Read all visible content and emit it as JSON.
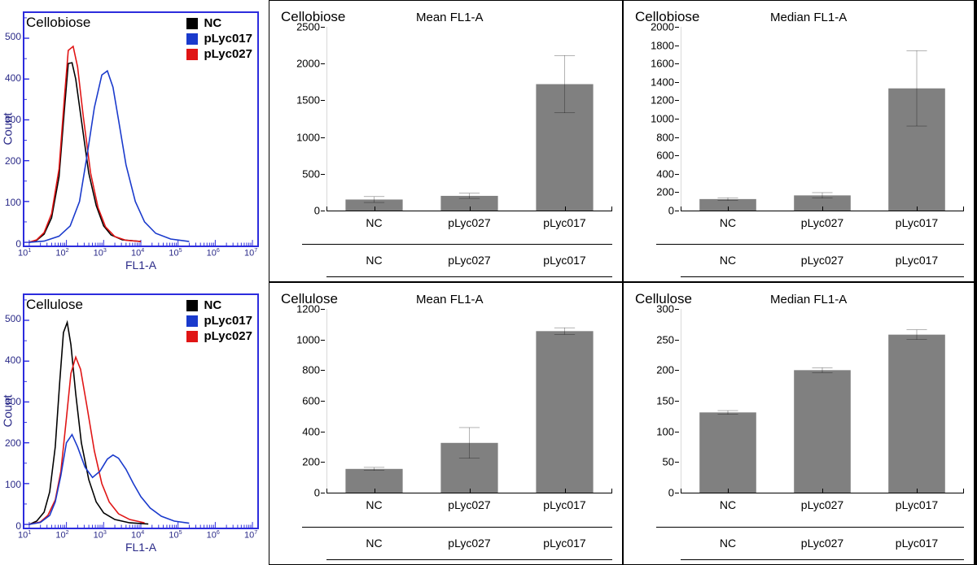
{
  "flow_plots": [
    {
      "title": "Cellobiose",
      "ylabel": "Count",
      "xlabel": "FL1-A",
      "ylim": [
        0,
        550
      ],
      "ytick_step": 100,
      "xlog_range": [
        1,
        7
      ],
      "border_color": "#2c2cdd",
      "axis_text_color": "#2a2a88",
      "legend": [
        {
          "label": "NC",
          "color": "#000000"
        },
        {
          "label": "pLyc017",
          "color": "#1a3acc"
        },
        {
          "label": "pLyc027",
          "color": "#e01515"
        }
      ],
      "curves": [
        {
          "color": "#000000",
          "pts": [
            [
              1.0,
              0
            ],
            [
              1.2,
              5
            ],
            [
              1.4,
              20
            ],
            [
              1.6,
              60
            ],
            [
              1.8,
              160
            ],
            [
              1.95,
              330
            ],
            [
              2.05,
              438
            ],
            [
              2.15,
              440
            ],
            [
              2.25,
              400
            ],
            [
              2.4,
              300
            ],
            [
              2.6,
              170
            ],
            [
              2.8,
              90
            ],
            [
              3.0,
              40
            ],
            [
              3.2,
              18
            ],
            [
              3.5,
              6
            ],
            [
              4.0,
              2
            ]
          ]
        },
        {
          "color": "#e01515",
          "pts": [
            [
              1.0,
              0
            ],
            [
              1.2,
              6
            ],
            [
              1.4,
              24
            ],
            [
              1.6,
              70
            ],
            [
              1.8,
              180
            ],
            [
              1.95,
              360
            ],
            [
              2.05,
              470
            ],
            [
              2.18,
              480
            ],
            [
              2.3,
              430
            ],
            [
              2.45,
              310
            ],
            [
              2.65,
              170
            ],
            [
              2.85,
              85
            ],
            [
              3.05,
              38
            ],
            [
              3.3,
              14
            ],
            [
              3.6,
              5
            ],
            [
              4.0,
              2
            ]
          ]
        },
        {
          "color": "#1a3acc",
          "pts": [
            [
              1.0,
              0
            ],
            [
              1.4,
              3
            ],
            [
              1.8,
              15
            ],
            [
              2.1,
              40
            ],
            [
              2.35,
              100
            ],
            [
              2.55,
              210
            ],
            [
              2.75,
              330
            ],
            [
              2.95,
              410
            ],
            [
              3.1,
              420
            ],
            [
              3.25,
              380
            ],
            [
              3.4,
              300
            ],
            [
              3.6,
              190
            ],
            [
              3.85,
              100
            ],
            [
              4.1,
              50
            ],
            [
              4.4,
              22
            ],
            [
              4.8,
              8
            ],
            [
              5.3,
              2
            ]
          ]
        }
      ]
    },
    {
      "title": "Cellulose",
      "ylabel": "Count",
      "xlabel": "FL1-A",
      "ylim": [
        0,
        550
      ],
      "ytick_step": 100,
      "xlog_range": [
        1,
        7
      ],
      "border_color": "#2c2cdd",
      "axis_text_color": "#2a2a88",
      "legend": [
        {
          "label": "NC",
          "color": "#000000"
        },
        {
          "label": "pLyc017",
          "color": "#1a3acc"
        },
        {
          "label": "pLyc027",
          "color": "#e01515"
        }
      ],
      "curves": [
        {
          "color": "#000000",
          "pts": [
            [
              1.0,
              0
            ],
            [
              1.2,
              8
            ],
            [
              1.4,
              30
            ],
            [
              1.55,
              80
            ],
            [
              1.7,
              190
            ],
            [
              1.82,
              350
            ],
            [
              1.92,
              470
            ],
            [
              2.02,
              495
            ],
            [
              2.12,
              440
            ],
            [
              2.25,
              320
            ],
            [
              2.4,
              200
            ],
            [
              2.6,
              110
            ],
            [
              2.8,
              55
            ],
            [
              3.0,
              28
            ],
            [
              3.3,
              12
            ],
            [
              3.7,
              4
            ],
            [
              4.2,
              1
            ]
          ]
        },
        {
          "color": "#e01515",
          "pts": [
            [
              1.0,
              0
            ],
            [
              1.3,
              6
            ],
            [
              1.5,
              22
            ],
            [
              1.7,
              60
            ],
            [
              1.85,
              130
            ],
            [
              2.0,
              260
            ],
            [
              2.12,
              370
            ],
            [
              2.25,
              410
            ],
            [
              2.38,
              380
            ],
            [
              2.55,
              290
            ],
            [
              2.75,
              180
            ],
            [
              2.95,
              100
            ],
            [
              3.15,
              55
            ],
            [
              3.4,
              26
            ],
            [
              3.7,
              12
            ],
            [
              4.1,
              4
            ]
          ]
        },
        {
          "color": "#1a3acc",
          "pts": [
            [
              1.0,
              0
            ],
            [
              1.3,
              5
            ],
            [
              1.55,
              22
            ],
            [
              1.7,
              55
            ],
            [
              1.85,
              120
            ],
            [
              2.0,
              200
            ],
            [
              2.15,
              220
            ],
            [
              2.3,
              190
            ],
            [
              2.5,
              140
            ],
            [
              2.7,
              115
            ],
            [
              2.9,
              130
            ],
            [
              3.1,
              160
            ],
            [
              3.25,
              170
            ],
            [
              3.4,
              162
            ],
            [
              3.6,
              135
            ],
            [
              3.8,
              100
            ],
            [
              4.0,
              68
            ],
            [
              4.25,
              40
            ],
            [
              4.55,
              20
            ],
            [
              4.9,
              8
            ],
            [
              5.3,
              3
            ]
          ]
        }
      ]
    }
  ],
  "bar_color": "#808080",
  "err_color": "#000000",
  "tick_color": "#000000",
  "text_color": "#000000",
  "font_sizes": {
    "axis": 13,
    "title": 17,
    "subtitle": 15,
    "xlabel": 14
  },
  "bar_charts": [
    {
      "title": "Cellobiose",
      "subtitle": "Mean FL1-A",
      "ymax": 2500,
      "ytick_step": 500,
      "yticks": [
        0,
        500,
        1000,
        1500,
        2000,
        2500
      ],
      "bar_width_ratio": 0.6,
      "categories": [
        "NC",
        "pLyc027",
        "pLyc017"
      ],
      "values": [
        150,
        200,
        1720
      ],
      "errs": [
        40,
        35,
        390
      ]
    },
    {
      "title": "Cellobiose",
      "subtitle": "Median FL1-A",
      "ymax": 2000,
      "ytick_step": 200,
      "yticks": [
        0,
        200,
        400,
        600,
        800,
        1000,
        1200,
        1400,
        1600,
        1800,
        2000
      ],
      "bar_width_ratio": 0.6,
      "categories": [
        "NC",
        "pLyc027",
        "pLyc017"
      ],
      "values": [
        125,
        165,
        1330
      ],
      "errs": [
        15,
        30,
        410
      ]
    },
    {
      "title": "Cellulose",
      "subtitle": "Mean FL1-A",
      "ymax": 1200,
      "ytick_step": 200,
      "yticks": [
        0,
        200,
        400,
        600,
        800,
        1000,
        1200
      ],
      "bar_width_ratio": 0.6,
      "categories": [
        "NC",
        "pLyc027",
        "pLyc017"
      ],
      "values": [
        155,
        325,
        1055
      ],
      "errs": [
        10,
        100,
        22
      ]
    },
    {
      "title": "Cellulose",
      "subtitle": "Median FL1-A",
      "ymax": 300,
      "ytick_step": 50,
      "yticks": [
        0,
        50,
        100,
        150,
        200,
        250,
        300
      ],
      "bar_width_ratio": 0.6,
      "categories": [
        "NC",
        "pLyc027",
        "pLyc017"
      ],
      "values": [
        131,
        200,
        258
      ],
      "errs": [
        3,
        4,
        8
      ]
    }
  ],
  "x_exponents": [
    1,
    2,
    3,
    4,
    5,
    6,
    7
  ]
}
